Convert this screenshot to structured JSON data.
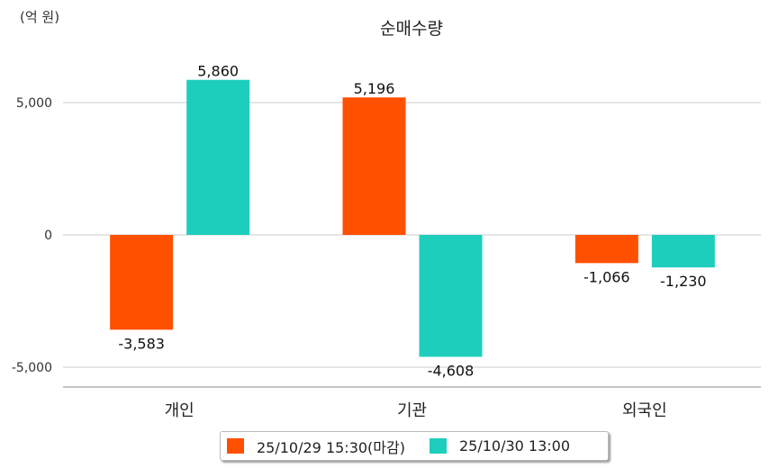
{
  "chart_data": {
    "type": "bar",
    "title": "순매수량",
    "ylabel": "(억 원)",
    "xlabel": "",
    "categories": [
      "개인",
      "기관",
      "외국인"
    ],
    "series": [
      {
        "name": "25/10/29 15:30(마감)",
        "values": [
          -3583,
          5196,
          -1066
        ],
        "labels": [
          "-3,583",
          "5,196",
          "-1,066"
        ],
        "color": "#FF5000"
      },
      {
        "name": "25/10/30 13:00",
        "values": [
          5860,
          -4608,
          -1230
        ],
        "labels": [
          "5,860",
          "-4,608",
          "-1,230"
        ],
        "color": "#1ECEBC"
      }
    ],
    "yticks": [
      5000,
      0,
      -5000
    ],
    "ytick_labels": [
      "5,000",
      "0",
      "-5,000"
    ],
    "ylim": [
      -5750,
      6800
    ],
    "grid": true,
    "legend": "bottom"
  }
}
